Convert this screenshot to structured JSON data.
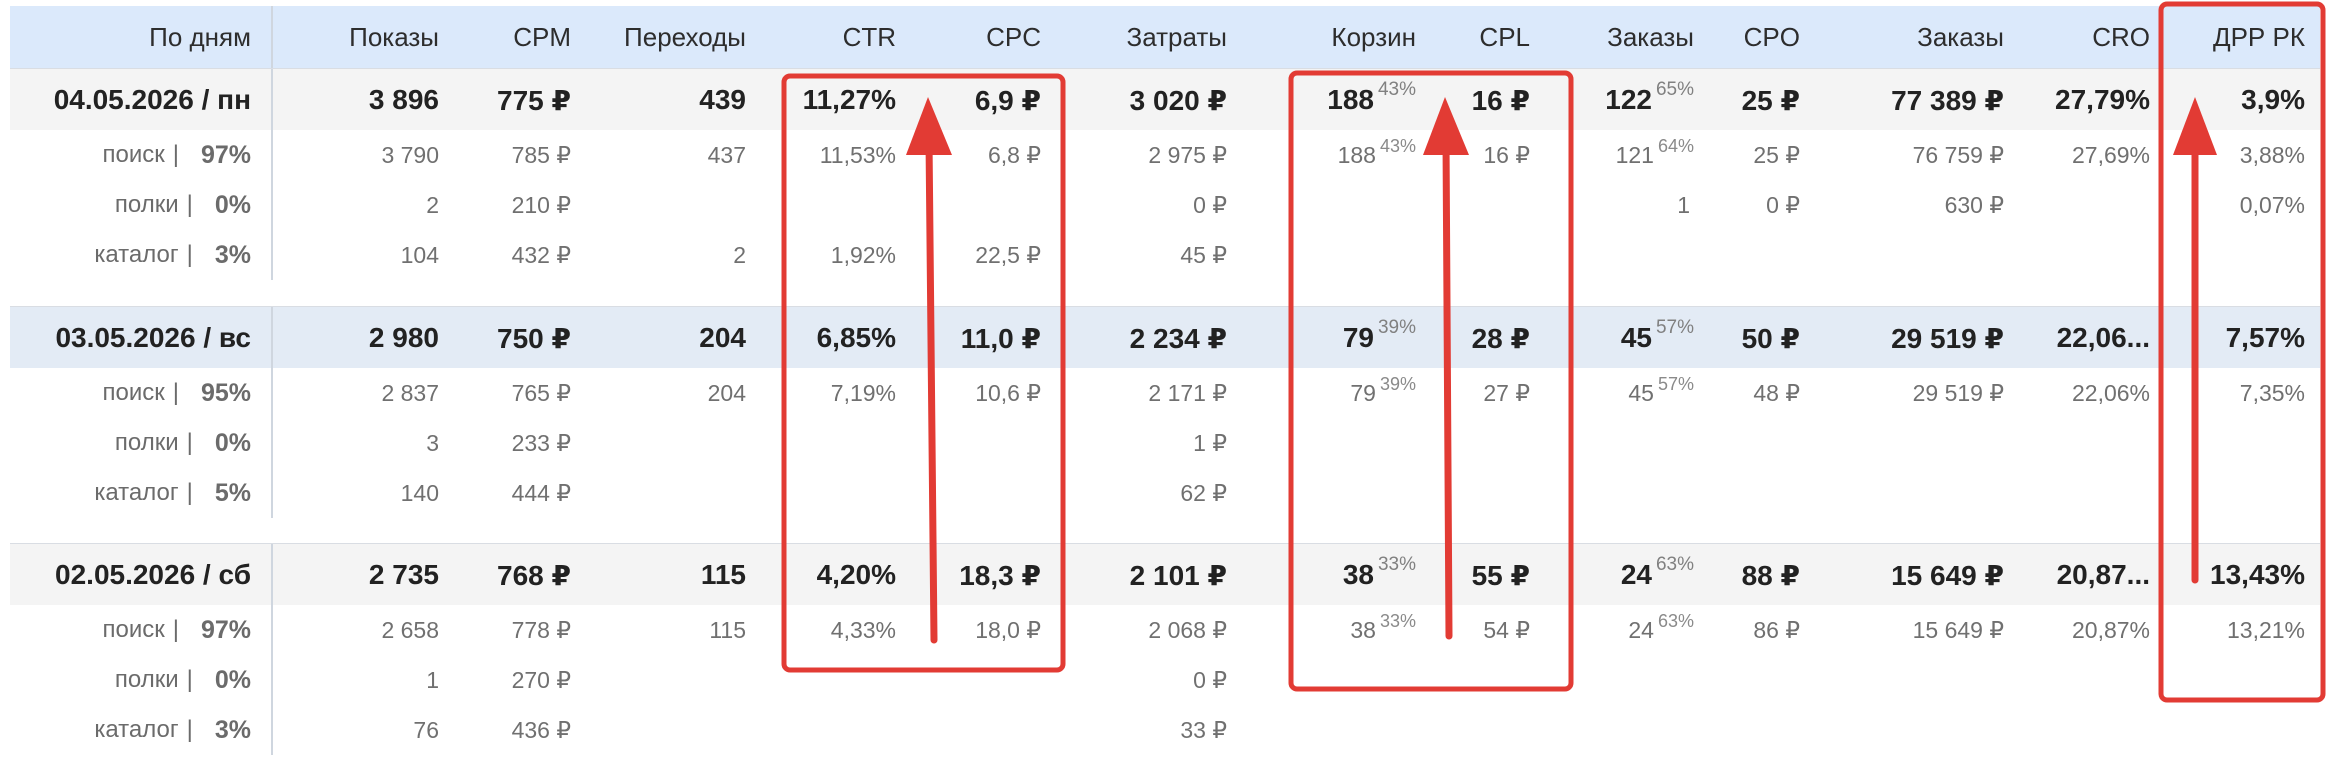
{
  "columns": [
    "По дням",
    "Показы",
    "CPM",
    "Переходы",
    "CTR",
    "CPC",
    "Затраты",
    "Корзин",
    "CPL",
    "Заказы",
    "CPO",
    "Заказы",
    "CRO",
    "ДРР РК"
  ],
  "days": [
    {
      "label": "04.05.2026 / пн",
      "values": [
        "3 896",
        "775 ₽",
        "439",
        "11,27%",
        "6,9 ₽",
        "3 020 ₽"
      ],
      "carts": "188",
      "carts_pct": "43%",
      "cpl": "16 ₽",
      "orders": "122",
      "orders_pct": "65%",
      "cpo": "25 ₽",
      "orders_sum": "77 389 ₽",
      "cro": "27,79%",
      "drr": "3,9%",
      "sources": [
        {
          "name": "поиск",
          "pct": "97%",
          "values": [
            "3 790",
            "785 ₽",
            "437",
            "11,53%",
            "6,8 ₽",
            "2 975 ₽"
          ],
          "carts": "188",
          "carts_pct": "43%",
          "cpl": "16 ₽",
          "orders": "121",
          "orders_pct": "64%",
          "cpo": "25 ₽",
          "orders_sum": "76 759 ₽",
          "cro": "27,69%",
          "drr": "3,88%"
        },
        {
          "name": "полки",
          "pct": "0%",
          "values": [
            "2",
            "210 ₽",
            "",
            "",
            "",
            "0 ₽"
          ],
          "carts": "",
          "carts_pct": "",
          "cpl": "",
          "orders": "1",
          "orders_pct": "",
          "cpo": "0 ₽",
          "orders_sum": "630 ₽",
          "cro": "",
          "drr": "0,07%"
        },
        {
          "name": "каталог",
          "pct": "3%",
          "values": [
            "104",
            "432 ₽",
            "2",
            "1,92%",
            "22,5 ₽",
            "45 ₽"
          ],
          "carts": "",
          "carts_pct": "",
          "cpl": "",
          "orders": "",
          "orders_pct": "",
          "cpo": "",
          "orders_sum": "",
          "cro": "",
          "drr": ""
        }
      ]
    },
    {
      "label": "03.05.2026 / вс",
      "values": [
        "2 980",
        "750 ₽",
        "204",
        "6,85%",
        "11,0 ₽",
        "2 234 ₽"
      ],
      "carts": "79",
      "carts_pct": "39%",
      "cpl": "28 ₽",
      "orders": "45",
      "orders_pct": "57%",
      "cpo": "50 ₽",
      "orders_sum": "29 519 ₽",
      "cro": "22,06...",
      "drr": "7,57%",
      "sources": [
        {
          "name": "поиск",
          "pct": "95%",
          "values": [
            "2 837",
            "765 ₽",
            "204",
            "7,19%",
            "10,6 ₽",
            "2 171 ₽"
          ],
          "carts": "79",
          "carts_pct": "39%",
          "cpl": "27 ₽",
          "orders": "45",
          "orders_pct": "57%",
          "cpo": "48 ₽",
          "orders_sum": "29 519 ₽",
          "cro": "22,06%",
          "drr": "7,35%"
        },
        {
          "name": "полки",
          "pct": "0%",
          "values": [
            "3",
            "233 ₽",
            "",
            "",
            "",
            "1 ₽"
          ],
          "carts": "",
          "carts_pct": "",
          "cpl": "",
          "orders": "",
          "orders_pct": "",
          "cpo": "",
          "orders_sum": "",
          "cro": "",
          "drr": ""
        },
        {
          "name": "каталог",
          "pct": "5%",
          "values": [
            "140",
            "444 ₽",
            "",
            "",
            "",
            "62 ₽"
          ],
          "carts": "",
          "carts_pct": "",
          "cpl": "",
          "orders": "",
          "orders_pct": "",
          "cpo": "",
          "orders_sum": "",
          "cro": "",
          "drr": ""
        }
      ]
    },
    {
      "label": "02.05.2026 / сб",
      "values": [
        "2 735",
        "768 ₽",
        "115",
        "4,20%",
        "18,3 ₽",
        "2 101 ₽"
      ],
      "carts": "38",
      "carts_pct": "33%",
      "cpl": "55 ₽",
      "orders": "24",
      "orders_pct": "63%",
      "cpo": "88 ₽",
      "orders_sum": "15 649 ₽",
      "cro": "20,87...",
      "drr": "13,43%",
      "sources": [
        {
          "name": "поиск",
          "pct": "97%",
          "values": [
            "2 658",
            "778 ₽",
            "115",
            "4,33%",
            "18,0 ₽",
            "2 068 ₽"
          ],
          "carts": "38",
          "carts_pct": "33%",
          "cpl": "54 ₽",
          "orders": "24",
          "orders_pct": "63%",
          "cpo": "86 ₽",
          "orders_sum": "15 649 ₽",
          "cro": "20,87%",
          "drr": "13,21%"
        },
        {
          "name": "полки",
          "pct": "0%",
          "values": [
            "1",
            "270 ₽",
            "",
            "",
            "",
            "0 ₽"
          ],
          "carts": "",
          "carts_pct": "",
          "cpl": "",
          "orders": "",
          "orders_pct": "",
          "cpo": "",
          "orders_sum": "",
          "cro": "",
          "drr": ""
        },
        {
          "name": "каталог",
          "pct": "3%",
          "values": [
            "76",
            "436 ₽",
            "",
            "",
            "",
            "33 ₽"
          ],
          "carts": "",
          "carts_pct": "",
          "cpl": "",
          "orders": "",
          "orders_pct": "",
          "cpo": "",
          "orders_sum": "",
          "cro": "",
          "drr": ""
        }
      ]
    }
  ],
  "annotation_color": "#e23b34"
}
